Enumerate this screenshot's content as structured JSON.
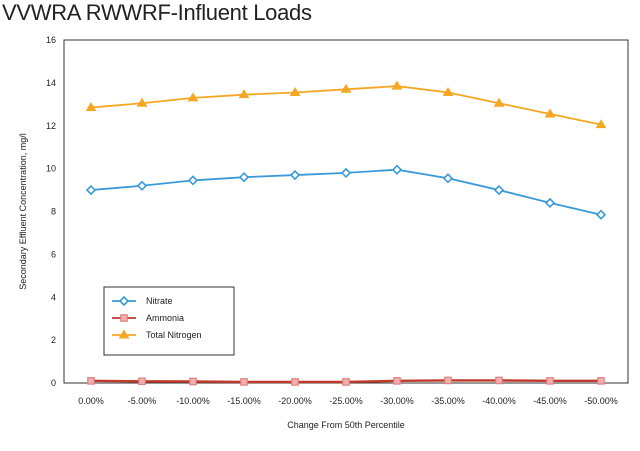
{
  "chart_data": {
    "type": "line",
    "title": "VVWRA RWWRF-Influent Loads",
    "xlabel": "Change From 50th Percentile",
    "ylabel": "Secondary Effluent Concentration, mg/l",
    "categories": [
      "0.00%",
      "-5.00%",
      "-10.00%",
      "-15.00%",
      "-20.00%",
      "-25.00%",
      "-30.00%",
      "-35.00%",
      "-40.00%",
      "-45.00%",
      "-50.00%"
    ],
    "ylim": [
      0,
      16
    ],
    "yticks": [
      "0",
      "2",
      "4",
      "6",
      "8",
      "10",
      "12",
      "14",
      "16"
    ],
    "grid": true,
    "legend_position": "bottom-left",
    "series": [
      {
        "name": "Nitrate",
        "color": "#3a9ad9",
        "marker": "diamond",
        "values": [
          9.0,
          9.2,
          9.45,
          9.6,
          9.7,
          9.8,
          9.95,
          9.55,
          9.0,
          8.4,
          7.85
        ]
      },
      {
        "name": "Ammonia",
        "color": "#c0392b",
        "marker": "square",
        "values": [
          0.1,
          0.08,
          0.07,
          0.05,
          0.05,
          0.05,
          0.1,
          0.12,
          0.12,
          0.1,
          0.1
        ]
      },
      {
        "name": "Total Nitrogen",
        "color": "#f5a623",
        "marker": "triangle",
        "values": [
          12.85,
          13.05,
          13.3,
          13.45,
          13.55,
          13.7,
          13.85,
          13.55,
          13.05,
          12.55,
          12.05
        ]
      }
    ]
  }
}
